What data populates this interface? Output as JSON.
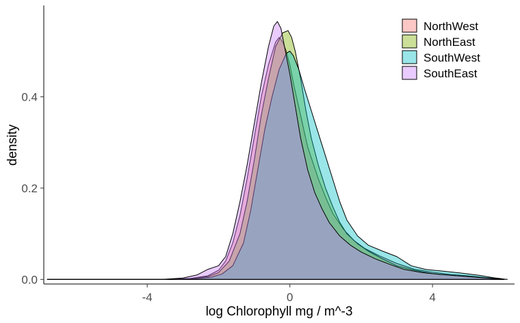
{
  "chart_data": {
    "type": "area",
    "subtype": "density",
    "title": "",
    "xlabel": "log Chlorophyll mg / m^-3",
    "ylabel": "density",
    "xlim": [
      -6.9,
      6.3
    ],
    "ylim": [
      -0.01,
      0.6
    ],
    "x_ticks": [
      -4,
      0,
      4
    ],
    "x_tick_labels": [
      "-4",
      "0",
      "4"
    ],
    "y_ticks": [
      0.0,
      0.2,
      0.4
    ],
    "y_tick_labels": [
      "0.0",
      "0.2",
      "0.4"
    ],
    "grid": false,
    "legend_position": "top-right",
    "series": [
      {
        "name": "NorthWest",
        "color": "#F8766D",
        "points": [
          [
            -6.8,
            0
          ],
          [
            -3.6,
            0
          ],
          [
            -2.8,
            0.002
          ],
          [
            -2.3,
            0.008
          ],
          [
            -2.0,
            0.02
          ],
          [
            -1.8,
            0.04
          ],
          [
            -1.6,
            0.08
          ],
          [
            -1.4,
            0.14
          ],
          [
            -1.2,
            0.22
          ],
          [
            -1.0,
            0.31
          ],
          [
            -0.8,
            0.4
          ],
          [
            -0.6,
            0.47
          ],
          [
            -0.4,
            0.52
          ],
          [
            -0.3,
            0.53
          ],
          [
            -0.2,
            0.52
          ],
          [
            -0.1,
            0.5
          ],
          [
            0.0,
            0.47
          ],
          [
            0.1,
            0.43
          ],
          [
            0.3,
            0.36
          ],
          [
            0.5,
            0.29
          ],
          [
            0.8,
            0.22
          ],
          [
            1.0,
            0.18
          ],
          [
            1.2,
            0.145
          ],
          [
            1.5,
            0.11
          ],
          [
            1.8,
            0.085
          ],
          [
            2.1,
            0.068
          ],
          [
            2.5,
            0.052
          ],
          [
            3.0,
            0.035
          ],
          [
            3.5,
            0.022
          ],
          [
            4.0,
            0.016
          ],
          [
            4.5,
            0.011
          ],
          [
            5.0,
            0.008
          ],
          [
            5.5,
            0.004
          ],
          [
            5.9,
            0.002
          ],
          [
            6.0,
            0
          ]
        ]
      },
      {
        "name": "NorthEast",
        "color": "#7CAE00",
        "points": [
          [
            -6.8,
            0
          ],
          [
            -3.4,
            0
          ],
          [
            -2.8,
            0.002
          ],
          [
            -2.3,
            0.006
          ],
          [
            -2.0,
            0.015
          ],
          [
            -1.7,
            0.04
          ],
          [
            -1.4,
            0.1
          ],
          [
            -1.2,
            0.17
          ],
          [
            -1.0,
            0.26
          ],
          [
            -0.8,
            0.36
          ],
          [
            -0.6,
            0.44
          ],
          [
            -0.4,
            0.51
          ],
          [
            -0.2,
            0.54
          ],
          [
            -0.05,
            0.545
          ],
          [
            0.05,
            0.53
          ],
          [
            0.15,
            0.5
          ],
          [
            0.3,
            0.44
          ],
          [
            0.45,
            0.37
          ],
          [
            0.6,
            0.31
          ],
          [
            0.8,
            0.25
          ],
          [
            1.0,
            0.2
          ],
          [
            1.2,
            0.16
          ],
          [
            1.4,
            0.125
          ],
          [
            1.6,
            0.1
          ],
          [
            1.9,
            0.078
          ],
          [
            2.2,
            0.062
          ],
          [
            2.6,
            0.045
          ],
          [
            3.0,
            0.03
          ],
          [
            3.5,
            0.02
          ],
          [
            4.0,
            0.013
          ],
          [
            4.5,
            0.009
          ],
          [
            5.0,
            0.006
          ],
          [
            5.5,
            0.003
          ],
          [
            5.9,
            0.001
          ],
          [
            6.0,
            0
          ]
        ]
      },
      {
        "name": "SouthWest",
        "color": "#00BFC4",
        "points": [
          [
            -6.8,
            0
          ],
          [
            -3.2,
            0
          ],
          [
            -2.6,
            0.002
          ],
          [
            -2.2,
            0.005
          ],
          [
            -1.9,
            0.012
          ],
          [
            -1.6,
            0.03
          ],
          [
            -1.3,
            0.08
          ],
          [
            -1.1,
            0.15
          ],
          [
            -0.9,
            0.24
          ],
          [
            -0.7,
            0.33
          ],
          [
            -0.5,
            0.4
          ],
          [
            -0.3,
            0.46
          ],
          [
            -0.1,
            0.495
          ],
          [
            0.0,
            0.5
          ],
          [
            0.1,
            0.49
          ],
          [
            0.25,
            0.46
          ],
          [
            0.4,
            0.42
          ],
          [
            0.6,
            0.37
          ],
          [
            0.8,
            0.32
          ],
          [
            1.0,
            0.27
          ],
          [
            1.2,
            0.22
          ],
          [
            1.4,
            0.17
          ],
          [
            1.6,
            0.13
          ],
          [
            1.9,
            0.095
          ],
          [
            2.2,
            0.075
          ],
          [
            2.6,
            0.062
          ],
          [
            3.0,
            0.05
          ],
          [
            3.4,
            0.03
          ],
          [
            3.8,
            0.022
          ],
          [
            4.3,
            0.018
          ],
          [
            4.8,
            0.014
          ],
          [
            5.3,
            0.009
          ],
          [
            5.7,
            0.004
          ],
          [
            6.0,
            0.001
          ],
          [
            6.1,
            0
          ]
        ]
      },
      {
        "name": "SouthEast",
        "color": "#C77CFF",
        "points": [
          [
            -6.8,
            0
          ],
          [
            -3.6,
            0
          ],
          [
            -3.0,
            0.003
          ],
          [
            -2.6,
            0.01
          ],
          [
            -2.3,
            0.022
          ],
          [
            -2.0,
            0.03
          ],
          [
            -1.8,
            0.05
          ],
          [
            -1.6,
            0.1
          ],
          [
            -1.4,
            0.17
          ],
          [
            -1.2,
            0.25
          ],
          [
            -1.0,
            0.34
          ],
          [
            -0.8,
            0.43
          ],
          [
            -0.6,
            0.51
          ],
          [
            -0.45,
            0.555
          ],
          [
            -0.35,
            0.565
          ],
          [
            -0.25,
            0.55
          ],
          [
            -0.15,
            0.51
          ],
          [
            0.0,
            0.45
          ],
          [
            0.15,
            0.38
          ],
          [
            0.3,
            0.31
          ],
          [
            0.5,
            0.24
          ],
          [
            0.7,
            0.19
          ],
          [
            0.9,
            0.155
          ],
          [
            1.1,
            0.125
          ],
          [
            1.4,
            0.095
          ],
          [
            1.7,
            0.075
          ],
          [
            2.0,
            0.06
          ],
          [
            2.4,
            0.045
          ],
          [
            2.8,
            0.033
          ],
          [
            3.2,
            0.022
          ],
          [
            3.7,
            0.015
          ],
          [
            4.2,
            0.011
          ],
          [
            4.7,
            0.008
          ],
          [
            5.2,
            0.005
          ],
          [
            5.7,
            0.002
          ],
          [
            6.0,
            0
          ]
        ]
      }
    ]
  }
}
